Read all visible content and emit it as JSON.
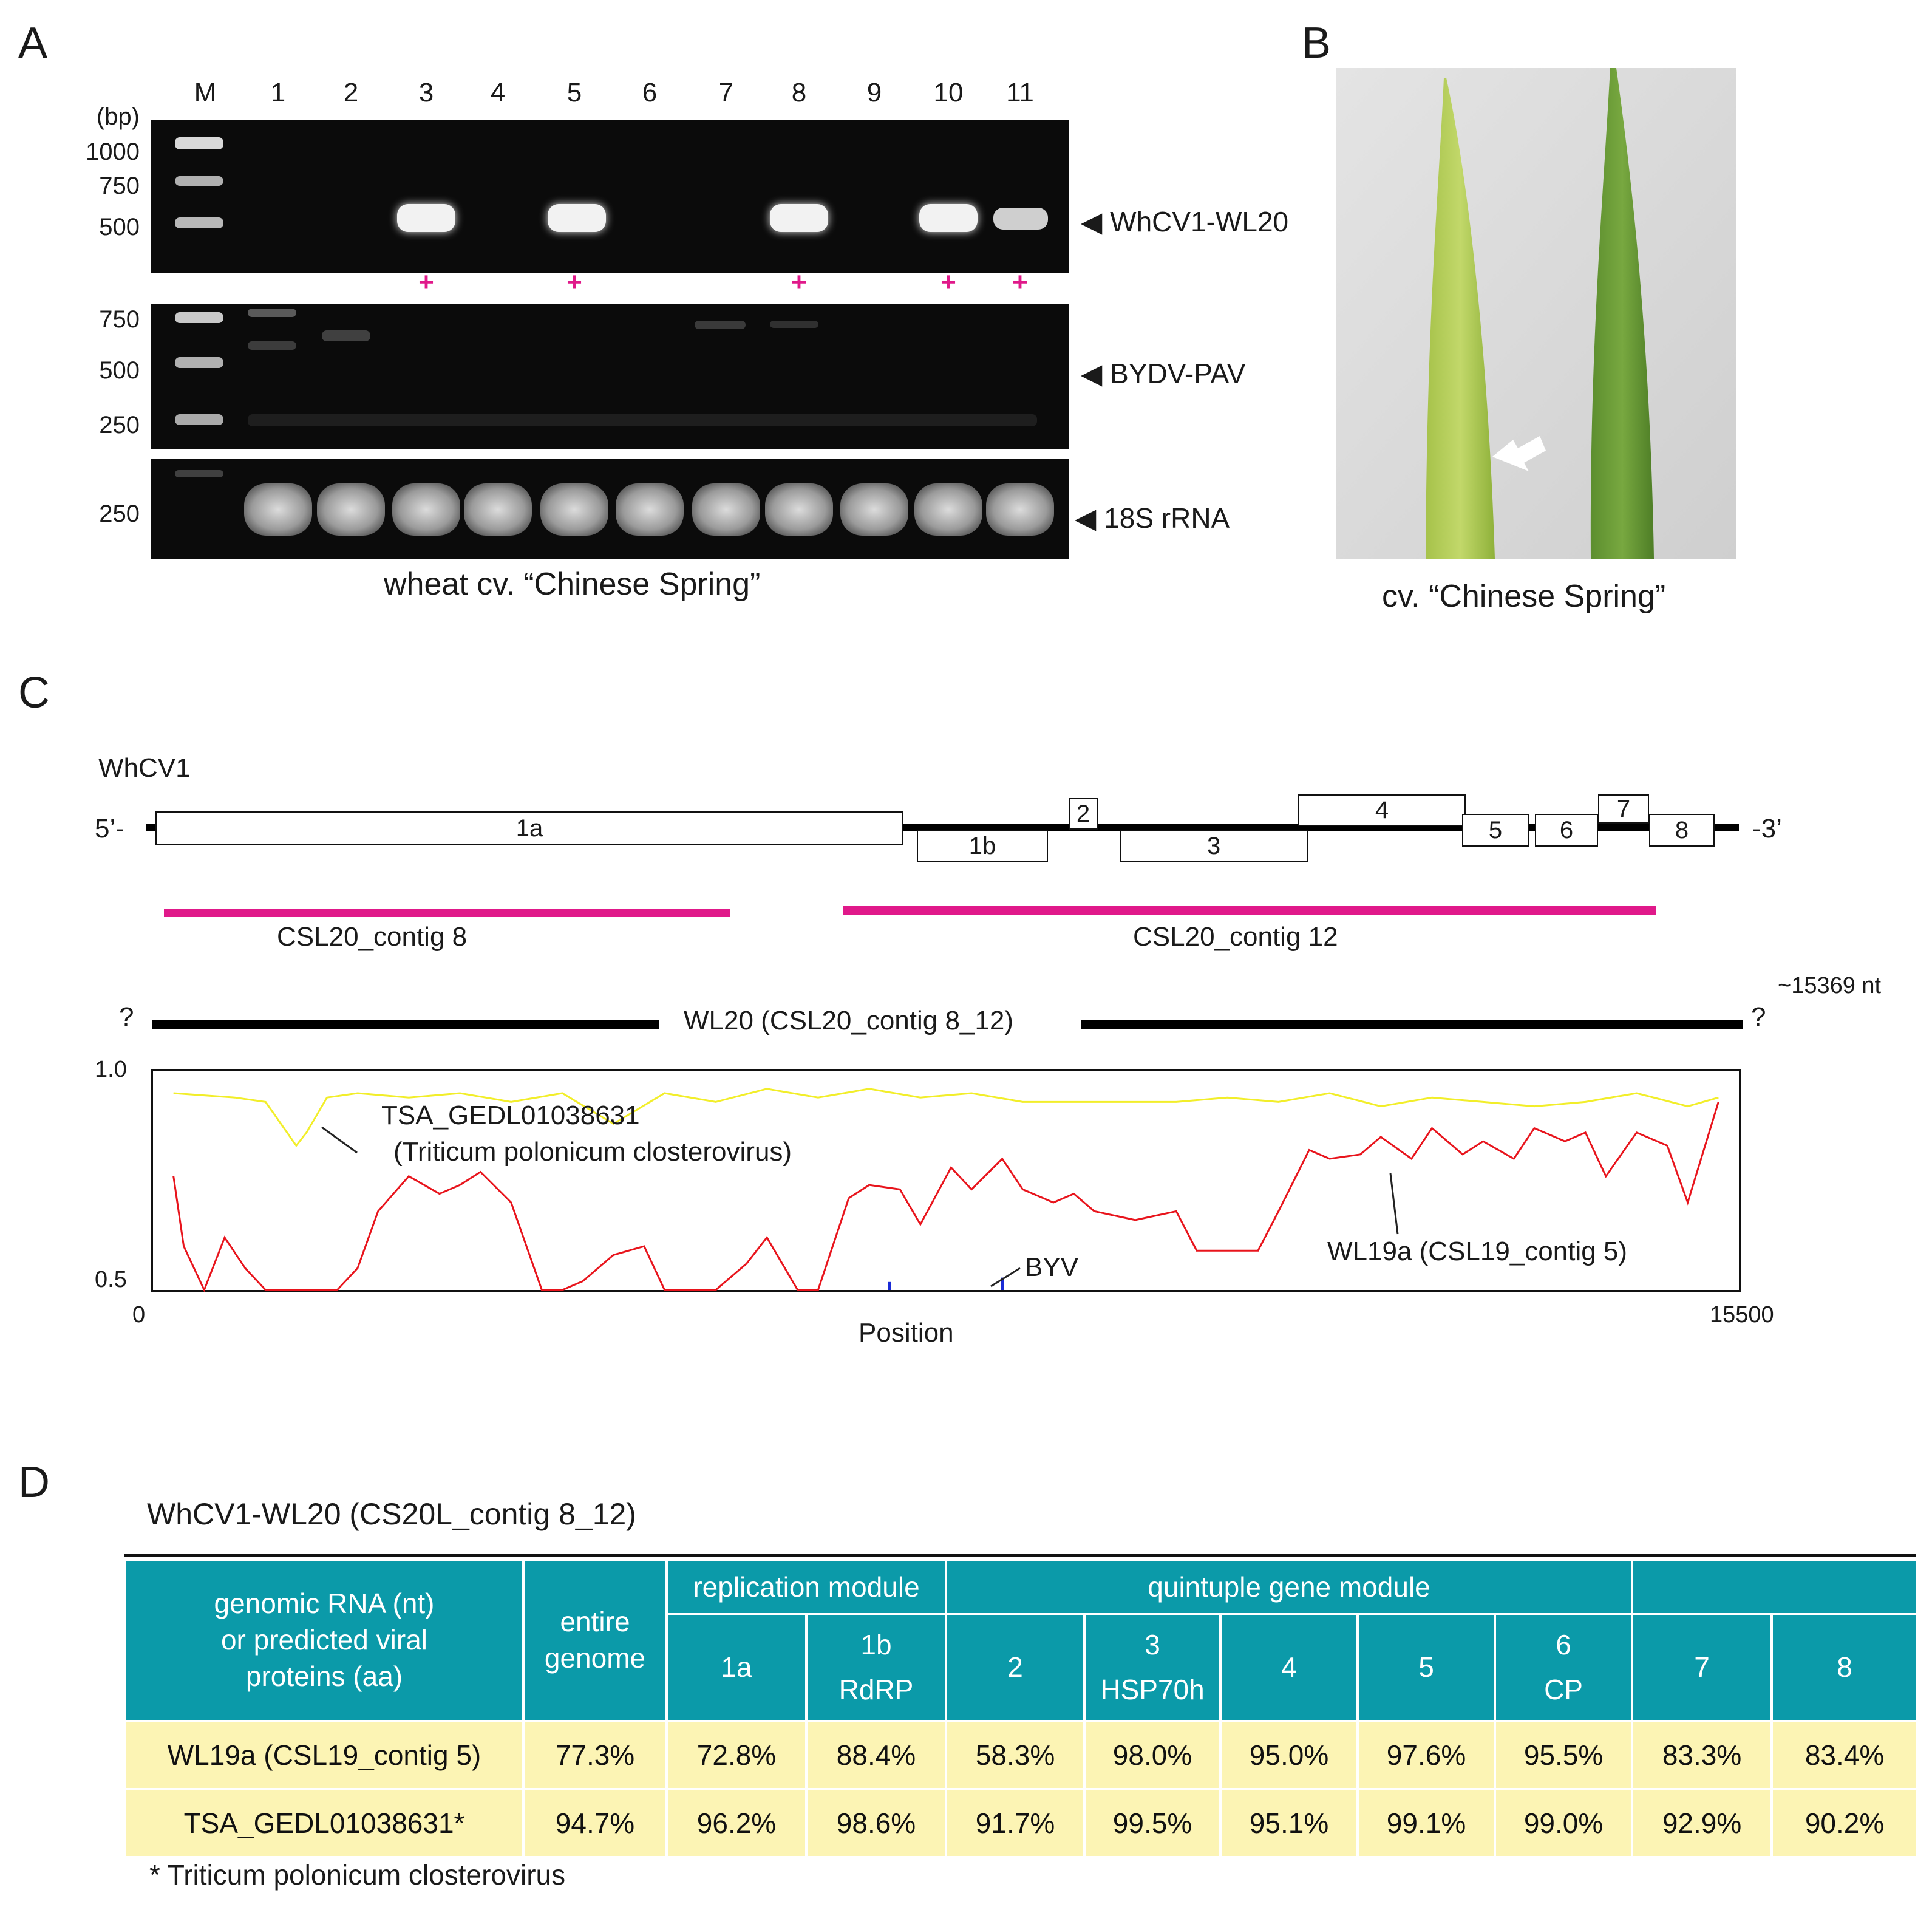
{
  "panel_letters": {
    "a": "A",
    "b": "B",
    "c": "C",
    "d": "D"
  },
  "panel_a": {
    "lanes": [
      "M",
      "1",
      "2",
      "3",
      "4",
      "5",
      "6",
      "7",
      "8",
      "9",
      "10",
      "11"
    ],
    "bp_unit": "(bp)",
    "gel1_ladder": [
      "1000",
      "750",
      "500"
    ],
    "gel2_ladder": [
      "750",
      "500",
      "250"
    ],
    "gel3_ladder": [
      "250"
    ],
    "gel1_label": "◀ WhCV1-WL20",
    "gel2_label": "◀ BYDV-PAV",
    "gel3_label": "◀ 18S rRNA",
    "plus_marks": [
      "+",
      "+",
      "+",
      "+",
      "+"
    ],
    "caption": "wheat cv. “Chinese Spring”"
  },
  "panel_b": {
    "caption": "cv. “Chinese Spring”"
  },
  "panel_c": {
    "virus_name": "WhCV1",
    "five_prime": "5’-",
    "three_prime": "-3’",
    "orfs": [
      "1a",
      "1b",
      "2",
      "3",
      "4",
      "5",
      "6",
      "7",
      "8"
    ],
    "contig8": "CSL20_contig 8",
    "contig12": "CSL20_contig 12",
    "wl20_label": "WL20 (CSL20_contig 8_12)",
    "q_left": "?",
    "q_right": "?",
    "length_label": "~15369 nt",
    "colors": {
      "contig": "#e0198a",
      "series_tsa": "#f2ee2a",
      "series_wl19a": "#e8141c",
      "series_byv": "#1a2bd6"
    }
  },
  "chart_data": {
    "type": "line",
    "xlabel": "Position",
    "xlim": [
      0,
      15500
    ],
    "ylim": [
      0.5,
      1.0
    ],
    "x_ticks": [
      "0",
      "15500"
    ],
    "y_ticks": [
      "1.0",
      "0.5"
    ],
    "annotations": {
      "tsa_line1": "TSA_GEDL01038631",
      "tsa_line2": "(Triticum polonicum closterovirus)",
      "wl19a": "WL19a (CSL19_contig 5)",
      "byv": "BYV"
    },
    "series": [
      {
        "key": "tsa",
        "x": [
          200,
          800,
          1100,
          1400,
          1500,
          1700,
          2000,
          2500,
          3000,
          3500,
          4000,
          4500,
          5000,
          5500,
          6000,
          6500,
          7000,
          7500,
          8000,
          8500,
          9000,
          9500,
          10000,
          10500,
          11000,
          11500,
          12000,
          12500,
          13000,
          13500,
          14000,
          14500,
          15000,
          15300
        ],
        "y": [
          0.95,
          0.94,
          0.93,
          0.83,
          0.86,
          0.94,
          0.95,
          0.94,
          0.95,
          0.93,
          0.95,
          0.88,
          0.95,
          0.93,
          0.96,
          0.94,
          0.96,
          0.94,
          0.95,
          0.93,
          0.93,
          0.93,
          0.93,
          0.94,
          0.93,
          0.95,
          0.92,
          0.94,
          0.93,
          0.92,
          0.93,
          0.95,
          0.92,
          0.94
        ]
      },
      {
        "key": "wl19a",
        "x": [
          200,
          300,
          500,
          700,
          900,
          1100,
          1300,
          1500,
          1800,
          2000,
          2200,
          2500,
          2800,
          3000,
          3200,
          3500,
          3800,
          4000,
          4200,
          4500,
          4800,
          5000,
          5300,
          5500,
          5800,
          6000,
          6300,
          6500,
          6800,
          7000,
          7300,
          7500,
          7800,
          8000,
          8300,
          8500,
          8800,
          9000,
          9200,
          9400,
          9600,
          9800,
          10000,
          10200,
          10500,
          10800,
          11000,
          11300,
          11500,
          11800,
          12000,
          12300,
          12500,
          12800,
          13000,
          13300,
          13500,
          13800,
          14000,
          14200,
          14500,
          14800,
          15000,
          15300
        ],
        "y": [
          0.76,
          0.6,
          0.5,
          0.62,
          0.55,
          0.5,
          0.5,
          0.5,
          0.5,
          0.55,
          0.68,
          0.76,
          0.72,
          0.74,
          0.77,
          0.7,
          0.5,
          0.5,
          0.52,
          0.58,
          0.6,
          0.5,
          0.5,
          0.5,
          0.56,
          0.62,
          0.5,
          0.5,
          0.71,
          0.74,
          0.73,
          0.65,
          0.78,
          0.73,
          0.8,
          0.73,
          0.7,
          0.72,
          0.68,
          0.67,
          0.66,
          0.67,
          0.68,
          0.59,
          0.59,
          0.59,
          0.68,
          0.82,
          0.8,
          0.81,
          0.85,
          0.8,
          0.87,
          0.81,
          0.84,
          0.8,
          0.87,
          0.84,
          0.86,
          0.76,
          0.86,
          0.83,
          0.7,
          0.93
        ]
      },
      {
        "key": "byv",
        "x": [
          7200,
          8300
        ],
        "y": [
          0.51,
          0.52
        ]
      }
    ]
  },
  "panel_d": {
    "title": "WhCV1-WL20 (CS20L_contig 8_12)",
    "header_col0": [
      "genomic RNA (nt)",
      "or predicted viral",
      "proteins (aa)"
    ],
    "header_entire": [
      "entire",
      "genome"
    ],
    "header_replication": "replication module",
    "header_quintuple": "quintuple gene module",
    "header_blank": "",
    "sub_headers": [
      [
        "1a"
      ],
      [
        "1b",
        "RdRP"
      ],
      [
        "2"
      ],
      [
        "3",
        "HSP70h"
      ],
      [
        "4"
      ],
      [
        "5"
      ],
      [
        "6",
        "CP"
      ],
      [
        "7"
      ],
      [
        "8"
      ]
    ],
    "rows": [
      {
        "label": "WL19a (CSL19_contig 5)",
        "values": [
          "77.3%",
          "72.8%",
          "88.4%",
          "58.3%",
          "98.0%",
          "95.0%",
          "97.6%",
          "95.5%",
          "83.3%",
          "83.4%"
        ]
      },
      {
        "label": "TSA_GEDL01038631*",
        "values": [
          "94.7%",
          "96.2%",
          "98.6%",
          "91.7%",
          "99.5%",
          "95.1%",
          "99.1%",
          "99.0%",
          "92.9%",
          "90.2%"
        ]
      }
    ],
    "footnote": "* Triticum polonicum closterovirus"
  }
}
